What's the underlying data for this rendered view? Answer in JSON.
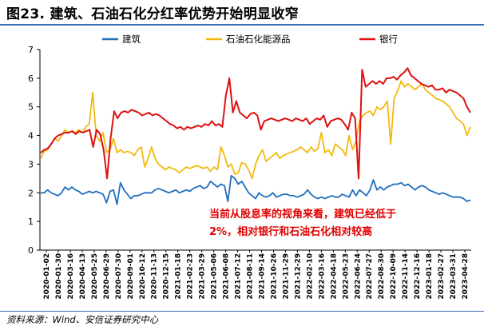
{
  "figure": {
    "title": "图23. 建筑、石油石化分红率优势开始明显收窄",
    "source": "资料来源：Wind、安信证券研究中心"
  },
  "chart_data": {
    "type": "line",
    "title": "",
    "xlabel": "",
    "ylabel": "",
    "ylim": [
      0,
      7
    ],
    "yticks": [
      0,
      1,
      2,
      3,
      4,
      5,
      6,
      7
    ],
    "x_tick_labels": [
      "2020-01-02",
      "2020-01-30",
      "2020-03-16",
      "2020-04-13",
      "2020-05-25",
      "2020-06-29",
      "2020-07-30",
      "2020-09-01",
      "2020-10-12",
      "2020-11-13",
      "2020-12-15",
      "2021-01-18",
      "2021-02-23",
      "2021-03-29",
      "2021-05-06",
      "2021-06-08",
      "2021-07-12",
      "2021-08-11",
      "2021-09-14",
      "2021-10-26",
      "2021-11-29",
      "2021-12-29",
      "2022-02-10",
      "2022-03-16",
      "2022-04-18",
      "2022-05-23",
      "2022-06-24",
      "2022-07-27",
      "2022-08-30",
      "2022-10-09",
      "2022-11-14",
      "2022-12-16",
      "2023-01-18",
      "2023-02-27",
      "2023-03-31",
      "2023-04-28"
    ],
    "grid": false,
    "legend_position": "top",
    "series": [
      {
        "name": "建筑",
        "color": "#1f6fbf",
        "values": [
          2.0,
          2.0,
          2.1,
          2.0,
          1.95,
          1.9,
          2.0,
          2.2,
          2.1,
          2.2,
          2.1,
          2.05,
          1.95,
          2.0,
          2.05,
          2.0,
          2.05,
          2.0,
          1.95,
          1.65,
          2.05,
          2.1,
          1.6,
          2.35,
          2.1,
          1.95,
          1.8,
          1.9,
          1.9,
          1.95,
          2.0,
          2.0,
          2.0,
          2.1,
          2.15,
          2.1,
          2.05,
          2.0,
          2.05,
          2.1,
          2.0,
          2.05,
          2.1,
          2.05,
          2.15,
          2.2,
          2.25,
          2.15,
          2.2,
          2.4,
          2.3,
          2.2,
          2.3,
          2.25,
          1.7,
          2.6,
          2.5,
          2.3,
          2.4,
          2.2,
          2.0,
          1.9,
          1.8,
          2.0,
          1.9,
          1.85,
          1.9,
          2.0,
          1.85,
          1.9,
          1.95,
          1.95,
          1.9,
          1.9,
          1.85,
          1.9,
          1.95,
          2.1,
          1.95,
          1.85,
          1.8,
          1.85,
          1.8,
          1.85,
          1.9,
          1.85,
          1.85,
          1.95,
          1.9,
          1.85,
          2.1,
          1.9,
          2.1,
          2.0,
          1.9,
          2.1,
          2.45,
          2.1,
          2.2,
          2.1,
          2.2,
          2.25,
          2.3,
          2.3,
          2.35,
          2.25,
          2.3,
          2.2,
          2.1,
          2.2,
          2.25,
          2.2,
          2.1,
          2.05,
          2.0,
          1.95,
          2.0,
          1.95,
          1.9,
          1.85,
          1.85,
          1.85,
          1.8,
          1.7,
          1.75
        ]
      },
      {
        "name": "石油石化能源品",
        "color": "#f2b90f",
        "values": [
          3.2,
          3.45,
          3.5,
          3.7,
          3.9,
          3.8,
          4.0,
          4.2,
          4.1,
          4.15,
          4.1,
          4.2,
          4.1,
          4.3,
          4.4,
          5.5,
          4.0,
          3.8,
          4.1,
          3.4,
          3.5,
          3.9,
          3.4,
          3.5,
          3.4,
          3.45,
          3.4,
          3.3,
          3.5,
          3.6,
          2.9,
          3.2,
          3.6,
          3.2,
          3.0,
          2.9,
          2.8,
          2.9,
          2.85,
          2.8,
          2.7,
          2.8,
          2.9,
          2.85,
          2.9,
          2.95,
          2.9,
          2.85,
          2.9,
          2.75,
          2.9,
          2.8,
          3.6,
          3.3,
          2.9,
          3.0,
          2.65,
          2.7,
          3.05,
          3.0,
          2.8,
          2.5,
          3.0,
          3.3,
          3.5,
          3.1,
          3.2,
          3.3,
          3.4,
          3.2,
          3.3,
          3.35,
          3.4,
          3.45,
          3.5,
          3.6,
          3.5,
          3.4,
          3.6,
          3.45,
          3.55,
          4.1,
          3.4,
          3.5,
          3.3,
          3.7,
          3.6,
          3.5,
          3.3,
          4.0,
          3.5,
          3.8,
          4.5,
          4.7,
          4.8,
          4.85,
          4.7,
          5.0,
          4.9,
          5.0,
          5.2,
          3.7,
          5.3,
          5.55,
          5.9,
          5.7,
          5.8,
          5.7,
          5.6,
          5.7,
          5.8,
          5.6,
          5.5,
          5.4,
          5.3,
          5.25,
          5.2,
          5.1,
          5.0,
          4.8,
          4.6,
          4.5,
          4.4,
          4.0,
          4.3
        ]
      },
      {
        "name": "银行",
        "color": "#dd1111",
        "values": [
          3.4,
          3.5,
          3.55,
          3.7,
          3.9,
          4.0,
          4.05,
          4.1,
          4.1,
          4.15,
          4.05,
          4.15,
          4.1,
          4.15,
          4.2,
          3.6,
          4.2,
          4.05,
          3.5,
          2.5,
          3.9,
          4.85,
          4.6,
          4.8,
          4.85,
          4.8,
          4.9,
          4.85,
          4.8,
          4.7,
          4.75,
          4.8,
          4.7,
          4.75,
          4.7,
          4.6,
          4.5,
          4.4,
          4.35,
          4.25,
          4.3,
          4.2,
          4.3,
          4.25,
          4.3,
          4.35,
          4.3,
          4.4,
          4.35,
          4.5,
          4.35,
          4.4,
          4.3,
          5.4,
          6.0,
          4.8,
          5.2,
          4.8,
          4.7,
          4.6,
          4.75,
          4.8,
          4.7,
          4.2,
          4.5,
          4.55,
          4.6,
          4.55,
          4.5,
          4.55,
          4.6,
          4.55,
          4.5,
          4.6,
          4.55,
          4.5,
          4.6,
          4.4,
          4.5,
          4.6,
          4.55,
          4.7,
          4.3,
          4.5,
          4.55,
          4.6,
          4.55,
          4.4,
          4.2,
          4.8,
          4.6,
          2.5,
          6.3,
          5.7,
          5.8,
          5.9,
          5.8,
          5.9,
          5.8,
          6.0,
          6.0,
          6.05,
          5.95,
          6.1,
          6.2,
          6.35,
          6.1,
          6.0,
          5.9,
          5.8,
          5.75,
          5.7,
          5.75,
          5.6,
          5.6,
          5.65,
          5.5,
          5.6,
          5.55,
          5.5,
          5.4,
          5.3,
          5.0,
          4.8
        ]
      }
    ],
    "annotation": {
      "line1": "当前从股息率的视角来看，建筑已经低于",
      "line2": "2%，相对银行和石油石化相对较高",
      "color": "#e00000"
    }
  }
}
